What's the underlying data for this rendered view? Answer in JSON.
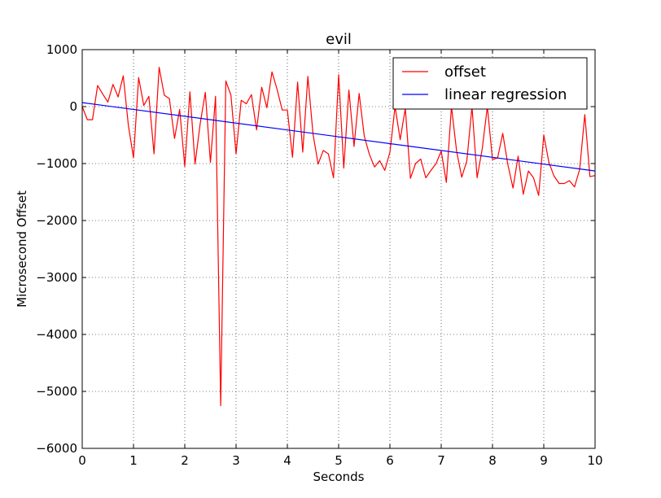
{
  "chart_data": {
    "type": "line",
    "title": "evil",
    "xlabel": "Seconds",
    "ylabel": "Microsecond Offset",
    "xlim": [
      0,
      10
    ],
    "ylim": [
      -6000,
      1000
    ],
    "xticks": [
      "0",
      "1",
      "2",
      "3",
      "4",
      "5",
      "6",
      "7",
      "8",
      "9",
      "10"
    ],
    "yticks": [
      "1000",
      "0",
      "−1000",
      "−2000",
      "−3000",
      "−4000",
      "−5000",
      "−6000"
    ],
    "grid": true,
    "legend_position": "top-right",
    "series": [
      {
        "name": "offset",
        "color": "#ff0000",
        "x": [
          0,
          0.1,
          0.2,
          0.3,
          0.4,
          0.5,
          0.6,
          0.7,
          0.8,
          0.9,
          1.0,
          1.1,
          1.2,
          1.3,
          1.4,
          1.5,
          1.6,
          1.7,
          1.8,
          1.9,
          2.0,
          2.1,
          2.2,
          2.3,
          2.4,
          2.5,
          2.6,
          2.7,
          2.8,
          2.9,
          3.0,
          3.1,
          3.2,
          3.3,
          3.4,
          3.5,
          3.6,
          3.7,
          3.8,
          3.9,
          4.0,
          4.1,
          4.2,
          4.3,
          4.4,
          4.5,
          4.6,
          4.7,
          4.8,
          4.9,
          5.0,
          5.1,
          5.2,
          5.3,
          5.4,
          5.5,
          5.6,
          5.7,
          5.8,
          5.9,
          6.0,
          6.1,
          6.2,
          6.3,
          6.4,
          6.5,
          6.6,
          6.7,
          6.8,
          6.9,
          7.0,
          7.1,
          7.2,
          7.3,
          7.4,
          7.5,
          7.6,
          7.7,
          7.8,
          7.9,
          8.0,
          8.1,
          8.2,
          8.3,
          8.4,
          8.5,
          8.6,
          8.7,
          8.8,
          8.9,
          9.0,
          9.1,
          9.2,
          9.3,
          9.4,
          9.5,
          9.6,
          9.7,
          9.8,
          9.9,
          10.0
        ],
        "y": [
          0,
          -230,
          -230,
          370,
          220,
          80,
          390,
          170,
          540,
          -330,
          -900,
          510,
          20,
          180,
          -830,
          690,
          200,
          140,
          -560,
          -50,
          -1050,
          260,
          -1010,
          -300,
          250,
          -980,
          180,
          -5250,
          450,
          200,
          -830,
          110,
          50,
          210,
          -410,
          340,
          -20,
          610,
          300,
          -60,
          -60,
          -890,
          430,
          -800,
          530,
          -480,
          -1010,
          -770,
          -830,
          -1250,
          560,
          -1080,
          290,
          -700,
          230,
          -520,
          -840,
          -1060,
          -950,
          -1120,
          -800,
          0,
          -580,
          -30,
          -1260,
          -1000,
          -920,
          -1250,
          -1120,
          -1000,
          -780,
          -1330,
          0,
          -780,
          -1240,
          -950,
          0,
          -1250,
          -740,
          0,
          -930,
          -900,
          -470,
          -1020,
          -1430,
          -870,
          -1540,
          -1130,
          -1250,
          -1560,
          -500,
          -980,
          -1220,
          -1350,
          -1350,
          -1300,
          -1410,
          -1100,
          -140,
          -1230,
          -1210
        ]
      },
      {
        "name": "linear regression",
        "color": "#0000ff",
        "x": [
          0,
          10
        ],
        "y": [
          70,
          -1130
        ]
      }
    ]
  }
}
